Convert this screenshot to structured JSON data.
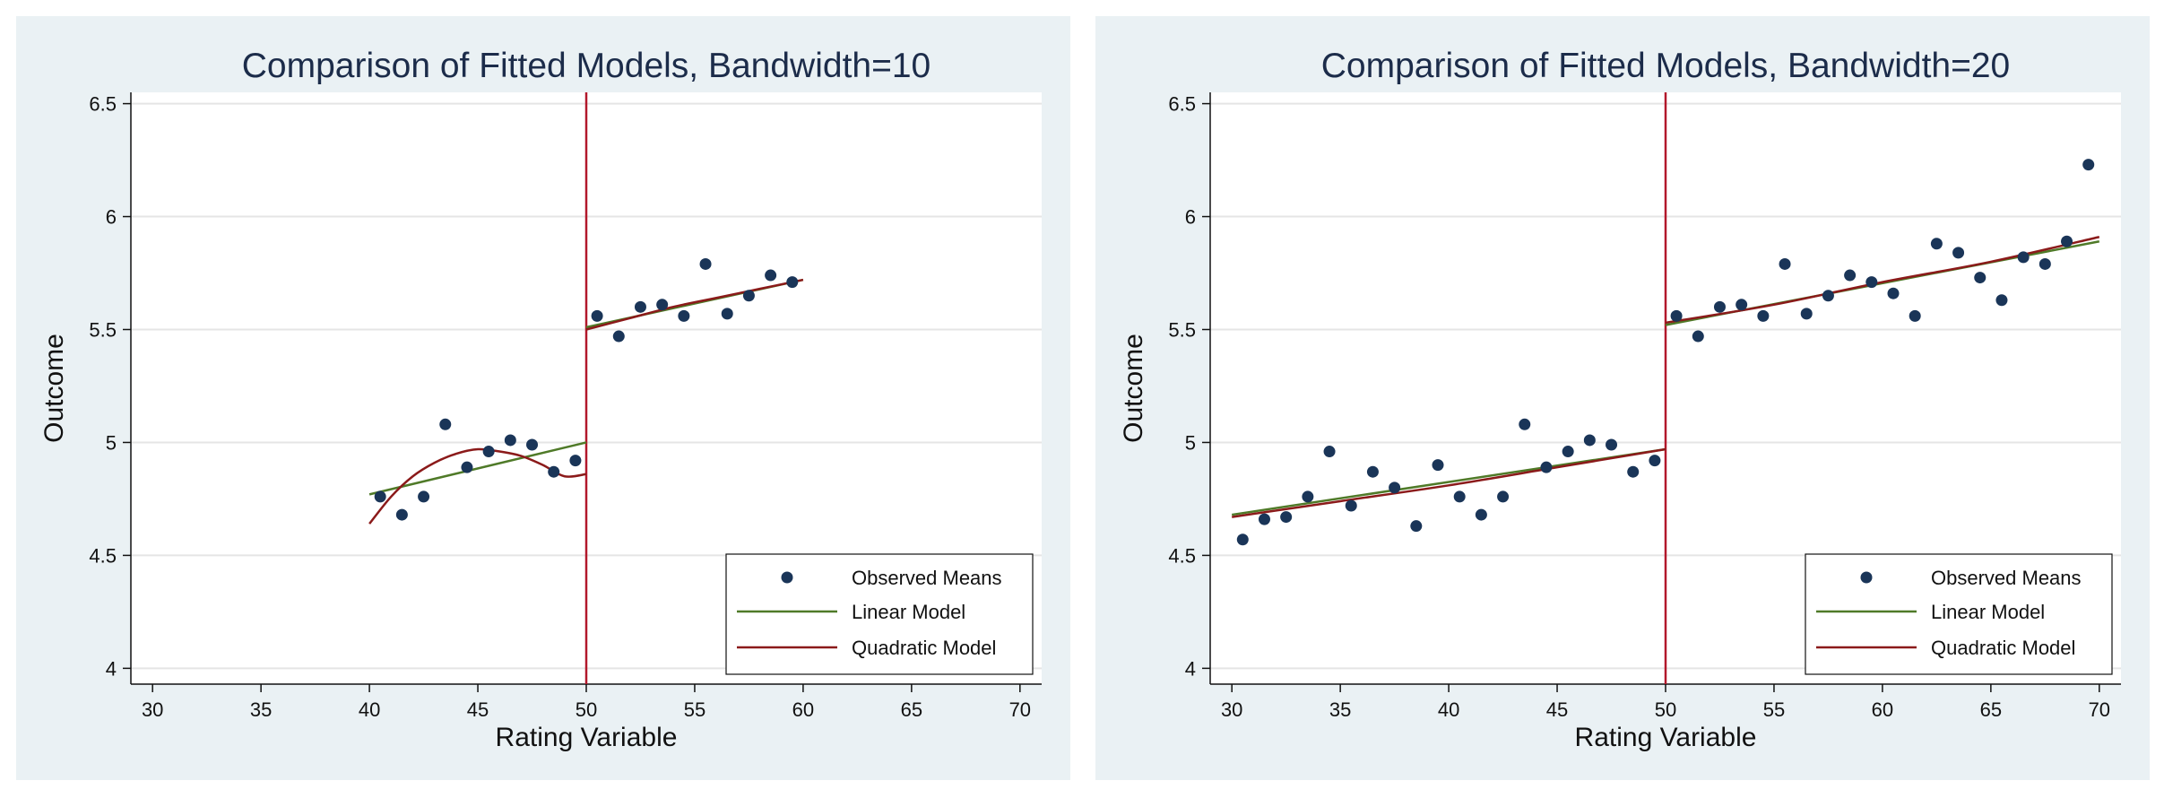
{
  "chart_data": [
    {
      "type": "scatter",
      "title": "Comparison of Fitted Models, Bandwidth=10",
      "xlabel": "Rating Variable",
      "ylabel": "Outcome",
      "xlim": [
        29,
        71
      ],
      "ylim": [
        3.93,
        6.55
      ],
      "xticks": [
        30,
        35,
        40,
        45,
        50,
        55,
        60,
        65,
        70
      ],
      "yticks": [
        4,
        4.5,
        5,
        5.5,
        6,
        6.5
      ],
      "ytick_labels": [
        "4",
        "4.5",
        "5",
        "5.5",
        "6",
        "6.5"
      ],
      "grid": true,
      "cutoff": 50,
      "legend_position": "bottom-right",
      "legend": [
        "Observed Means",
        "Linear Model",
        "Quadratic Model"
      ],
      "colors": {
        "points": "#1a3558",
        "linear": "#4f7a28",
        "quadratic": "#8b1a1a",
        "cutoff": "#b2182b",
        "grid": "#e5e5e5"
      },
      "series": [
        {
          "name": "Observed Means",
          "kind": "points",
          "x": [
            40.5,
            41.5,
            42.5,
            43.5,
            44.5,
            45.5,
            46.5,
            47.5,
            48.5,
            49.5,
            50.5,
            51.5,
            52.5,
            53.5,
            54.5,
            55.5,
            56.5,
            57.5,
            58.5,
            59.5
          ],
          "y": [
            4.76,
            4.68,
            4.76,
            5.08,
            4.89,
            4.96,
            5.01,
            4.99,
            4.87,
            4.92,
            5.56,
            5.47,
            5.6,
            5.61,
            5.56,
            5.79,
            5.57,
            5.65,
            5.74,
            5.71
          ]
        },
        {
          "name": "Linear Model",
          "kind": "line",
          "segments": [
            {
              "x": [
                40,
                50
              ],
              "y": [
                4.77,
                5.0
              ]
            },
            {
              "x": [
                50,
                60
              ],
              "y": [
                5.51,
                5.72
              ]
            }
          ]
        },
        {
          "name": "Quadratic Model",
          "kind": "line",
          "segments": [
            {
              "x": [
                40,
                41,
                42,
                43,
                44,
                45,
                46,
                47,
                48,
                49,
                50
              ],
              "y": [
                4.64,
                4.76,
                4.85,
                4.91,
                4.95,
                4.97,
                4.96,
                4.94,
                4.9,
                4.85,
                4.86
              ]
            },
            {
              "x": [
                50,
                52,
                54,
                56,
                58,
                60
              ],
              "y": [
                5.5,
                5.55,
                5.6,
                5.64,
                5.68,
                5.72
              ]
            }
          ]
        }
      ]
    },
    {
      "type": "scatter",
      "title": "Comparison of Fitted Models, Bandwidth=20",
      "xlabel": "Rating Variable",
      "ylabel": "Outcome",
      "xlim": [
        29,
        71
      ],
      "ylim": [
        3.93,
        6.55
      ],
      "xticks": [
        30,
        35,
        40,
        45,
        50,
        55,
        60,
        65,
        70
      ],
      "yticks": [
        4,
        4.5,
        5,
        5.5,
        6,
        6.5
      ],
      "ytick_labels": [
        "4",
        "4.5",
        "5",
        "5.5",
        "6",
        "6.5"
      ],
      "grid": true,
      "cutoff": 50,
      "legend_position": "bottom-right",
      "legend": [
        "Observed Means",
        "Linear Model",
        "Quadratic Model"
      ],
      "colors": {
        "points": "#1a3558",
        "linear": "#4f7a28",
        "quadratic": "#8b1a1a",
        "cutoff": "#b2182b",
        "grid": "#e5e5e5"
      },
      "series": [
        {
          "name": "Observed Means",
          "kind": "points",
          "x": [
            30.5,
            31.5,
            32.5,
            33.5,
            34.5,
            35.5,
            36.5,
            37.5,
            38.5,
            39.5,
            40.5,
            41.5,
            42.5,
            43.5,
            44.5,
            45.5,
            46.5,
            47.5,
            48.5,
            49.5,
            50.5,
            51.5,
            52.5,
            53.5,
            54.5,
            55.5,
            56.5,
            57.5,
            58.5,
            59.5,
            60.5,
            61.5,
            62.5,
            63.5,
            64.5,
            65.5,
            66.5,
            67.5,
            68.5,
            69.5
          ],
          "y": [
            4.57,
            4.66,
            4.67,
            4.76,
            4.96,
            4.72,
            4.87,
            4.8,
            4.63,
            4.9,
            4.76,
            4.68,
            4.76,
            5.08,
            4.89,
            4.96,
            5.01,
            4.99,
            4.87,
            4.92,
            5.56,
            5.47,
            5.6,
            5.61,
            5.56,
            5.79,
            5.57,
            5.65,
            5.74,
            5.71,
            5.66,
            5.56,
            5.88,
            5.84,
            5.73,
            5.63,
            5.82,
            5.79,
            5.89,
            6.23
          ]
        },
        {
          "name": "Linear Model",
          "kind": "line",
          "segments": [
            {
              "x": [
                30,
                50
              ],
              "y": [
                4.68,
                4.97
              ]
            },
            {
              "x": [
                50,
                70
              ],
              "y": [
                5.52,
                5.89
              ]
            }
          ]
        },
        {
          "name": "Quadratic Model",
          "kind": "line",
          "segments": [
            {
              "x": [
                30,
                35,
                40,
                45,
                50
              ],
              "y": [
                4.67,
                4.74,
                4.81,
                4.89,
                4.97
              ]
            },
            {
              "x": [
                50,
                55,
                60,
                65,
                70
              ],
              "y": [
                5.53,
                5.61,
                5.71,
                5.8,
                5.91
              ]
            }
          ]
        }
      ]
    }
  ]
}
